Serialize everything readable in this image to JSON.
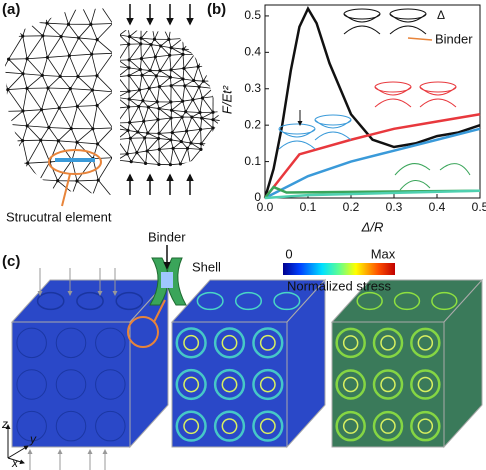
{
  "panel_a": {
    "label": "(a)",
    "caption": "Strucutral element"
  },
  "chart_data": {
    "type": "line",
    "label": "(b)",
    "x_label": "Δ/R",
    "y_label": "F/Et²",
    "xlim": [
      0,
      0.5
    ],
    "ylim": [
      0,
      0.53
    ],
    "xticks": [
      {
        "value": 0,
        "label": "0.0"
      },
      0.1,
      0.2,
      0.3,
      0.4,
      0.5
    ],
    "yticks": [
      0,
      0.1,
      0.2,
      0.3,
      0.4,
      0.5
    ],
    "annotations": [
      "Δ",
      "Binder"
    ],
    "series": [
      {
        "color": "#111111",
        "x": [
          0,
          0.02,
          0.04,
          0.06,
          0.08,
          0.1,
          0.12,
          0.15,
          0.2,
          0.25,
          0.3,
          0.35,
          0.4,
          0.45,
          0.5
        ],
        "values": [
          0,
          0.08,
          0.2,
          0.35,
          0.47,
          0.52,
          0.48,
          0.37,
          0.23,
          0.16,
          0.14,
          0.15,
          0.17,
          0.18,
          0.2
        ]
      },
      {
        "color": "#e8383d",
        "x": [
          0,
          0.04,
          0.08,
          0.2,
          0.3,
          0.4,
          0.5
        ],
        "values": [
          0,
          0.06,
          0.12,
          0.16,
          0.19,
          0.21,
          0.23
        ]
      },
      {
        "color": "#3a9ad9",
        "x": [
          0,
          0.1,
          0.2,
          0.3,
          0.4,
          0.5
        ],
        "values": [
          0,
          0.06,
          0.1,
          0.13,
          0.16,
          0.19
        ]
      },
      {
        "color": "#3aa55a",
        "x": [
          0,
          0.02,
          0.05,
          0.5
        ],
        "values": [
          0,
          0.03,
          0.015,
          0.02
        ]
      },
      {
        "color": "#4fd0b0",
        "x": [
          0,
          0.1,
          0.3,
          0.5
        ],
        "values": [
          0,
          0.008,
          0.014,
          0.02
        ]
      }
    ]
  },
  "panel_c": {
    "label": "(c)",
    "binder": "Binder",
    "shell": "Shell",
    "colorbar_min": "0",
    "colorbar_max": "Max",
    "colorbar_label": "Normalized stress",
    "axes": [
      "z",
      "y",
      "x"
    ]
  }
}
